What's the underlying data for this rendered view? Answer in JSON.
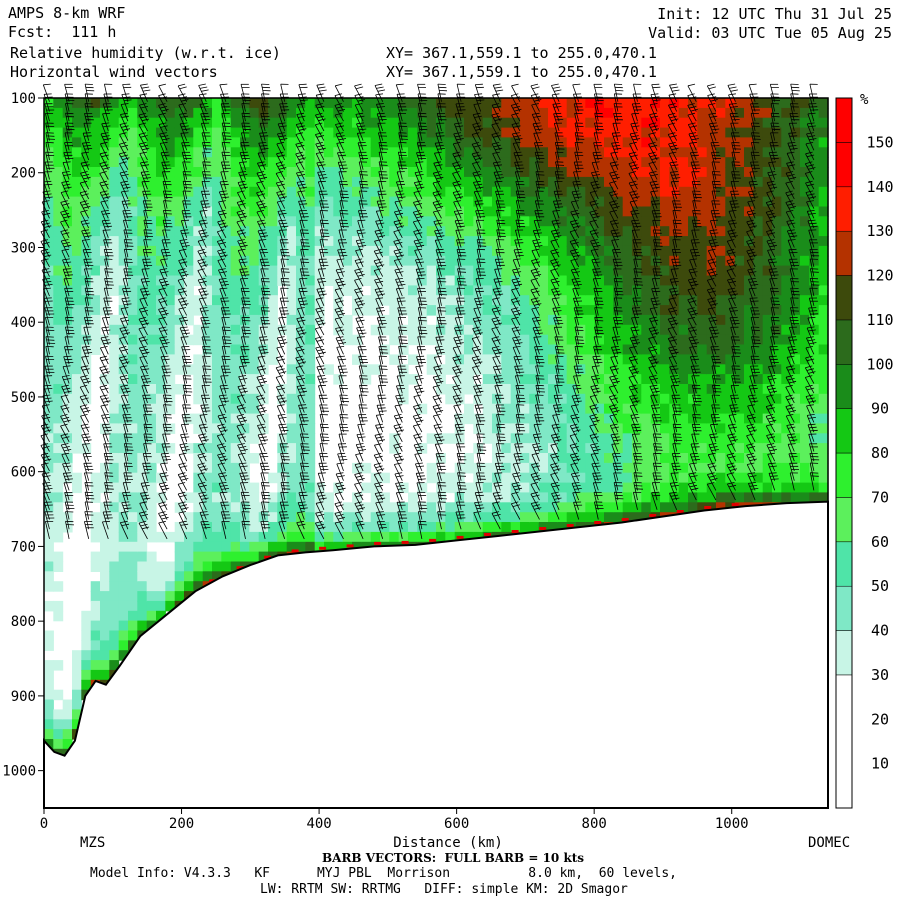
{
  "header": {
    "model": "AMPS 8-km WRF",
    "forecast": "Fcst:  111 h",
    "field1": "Relative humidity (w.r.t. ice)",
    "field2": "Horizontal wind vectors",
    "init": "Init: 12 UTC Thu 31 Jul 25",
    "valid": "Valid: 03 UTC Tue 05 Aug 25",
    "xy1": "XY= 367.1,559.1 to 255.0,470.1",
    "xy2": "XY= 367.1,559.1 to 255.0,470.1"
  },
  "footer": {
    "barb": "BARB VECTORS:  FULL BARB = 10 kts",
    "model_info": "Model Info: V4.3.3   KF      MYJ PBL  Morrison          8.0 km,  60 levels,",
    "physics": "LW: RRTM SW: RRTMG   DIFF: simple KM: 2D Smagor"
  },
  "chart_data": {
    "type": "heatmap",
    "title": "Relative humidity (w.r.t. ice)",
    "overlay": "Horizontal wind vectors",
    "xlabel": "Distance (km)",
    "ylabel": "",
    "xlim": [
      0,
      1140
    ],
    "ylim": [
      1050,
      100
    ],
    "x_ticks": [
      0,
      200,
      400,
      600,
      800,
      1000
    ],
    "y_ticks": [
      100,
      200,
      300,
      400,
      500,
      600,
      700,
      800,
      900,
      1000
    ],
    "x_endpoint_labels": [
      "MZS",
      "DOMEC"
    ],
    "colorbar": {
      "unit": "%",
      "ticks": [
        10,
        20,
        30,
        40,
        50,
        60,
        70,
        80,
        90,
        100,
        110,
        120,
        130,
        140,
        150
      ],
      "bins": [
        {
          "from": 0,
          "to": 30,
          "color": "#ffffff"
        },
        {
          "from": 30,
          "to": 40,
          "color": "#c8f5e6"
        },
        {
          "from": 40,
          "to": 50,
          "color": "#7fe8c6"
        },
        {
          "from": 50,
          "to": 60,
          "color": "#4fe4a8"
        },
        {
          "from": 60,
          "to": 70,
          "color": "#5cf05c"
        },
        {
          "from": 70,
          "to": 80,
          "color": "#2ef02e"
        },
        {
          "from": 80,
          "to": 90,
          "color": "#14c814"
        },
        {
          "from": 90,
          "to": 100,
          "color": "#1a8c1a"
        },
        {
          "from": 100,
          "to": 110,
          "color": "#2c6b1c"
        },
        {
          "from": 110,
          "to": 120,
          "color": "#3d4a0c"
        },
        {
          "from": 120,
          "to": 130,
          "color": "#b43200"
        },
        {
          "from": 130,
          "to": 140,
          "color": "#ff1e00"
        },
        {
          "from": 140,
          "to": 150,
          "color": "#ff0000"
        },
        {
          "from": 150,
          "to": 160,
          "color": "#ff0000"
        }
      ]
    },
    "terrain_pressure": {
      "distance": [
        0,
        15,
        30,
        45,
        60,
        75,
        90,
        110,
        140,
        180,
        220,
        260,
        300,
        340,
        380,
        420,
        480,
        540,
        600,
        660,
        720,
        780,
        840,
        900,
        960,
        1020,
        1080,
        1140
      ],
      "pressure": [
        960,
        975,
        980,
        960,
        900,
        880,
        885,
        860,
        820,
        790,
        760,
        740,
        725,
        712,
        708,
        705,
        700,
        698,
        692,
        686,
        680,
        674,
        668,
        660,
        652,
        646,
        642,
        640
      ]
    },
    "barb_note": "FULL BARB = 10 kts"
  }
}
